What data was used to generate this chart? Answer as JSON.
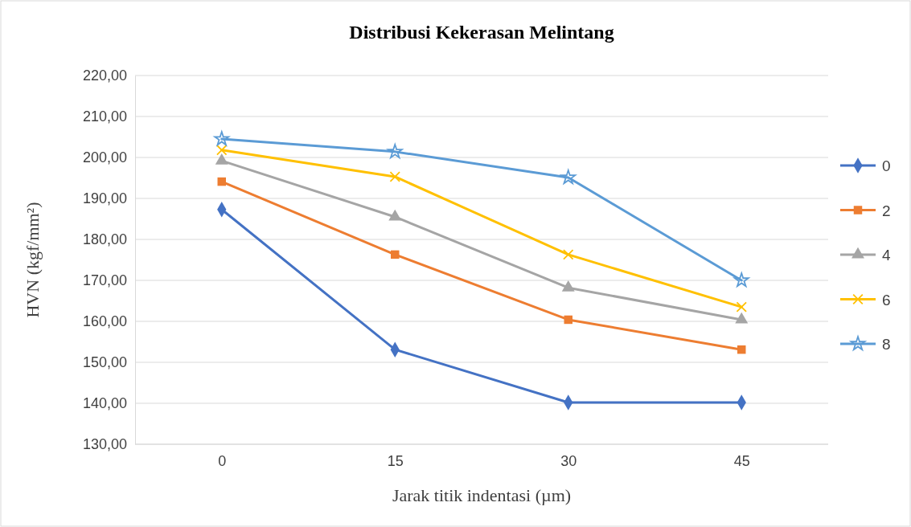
{
  "chart_data": {
    "type": "line",
    "title": "Distribusi Kekerasan Melintang",
    "xlabel": "Jarak titik indentasi  (µm)",
    "ylabel": "HVN (kgf/mm²)",
    "categories": [
      "0",
      "15",
      "30",
      "45"
    ],
    "series": [
      {
        "name": "0",
        "color": "#4472c4",
        "marker": "diamond",
        "values": [
          187.3,
          153.1,
          140.2,
          140.2
        ]
      },
      {
        "name": "2",
        "color": "#ed7d31",
        "marker": "square",
        "values": [
          194.1,
          176.3,
          160.4,
          153.1
        ]
      },
      {
        "name": "4",
        "color": "#a5a5a5",
        "marker": "triangle",
        "values": [
          199.2,
          185.5,
          168.2,
          160.4
        ]
      },
      {
        "name": "6",
        "color": "#ffc000",
        "marker": "cross",
        "values": [
          201.8,
          195.3,
          176.3,
          163.5
        ]
      },
      {
        "name": "8",
        "color": "#5b9bd5",
        "marker": "star",
        "values": [
          204.5,
          201.4,
          195.1,
          170.0
        ]
      }
    ],
    "ylim": [
      130,
      220
    ],
    "yticks": [
      {
        "value": 130,
        "label": "130,00"
      },
      {
        "value": 140,
        "label": "140,00"
      },
      {
        "value": 150,
        "label": "150,00"
      },
      {
        "value": 160,
        "label": "160,00"
      },
      {
        "value": 170,
        "label": "170,00"
      },
      {
        "value": 180,
        "label": "180,00"
      },
      {
        "value": 190,
        "label": "190,00"
      },
      {
        "value": 200,
        "label": "200,00"
      },
      {
        "value": 210,
        "label": "210,00"
      },
      {
        "value": 220,
        "label": "220,00"
      }
    ],
    "grid": "y",
    "legend": "right",
    "line_style": "solid"
  }
}
